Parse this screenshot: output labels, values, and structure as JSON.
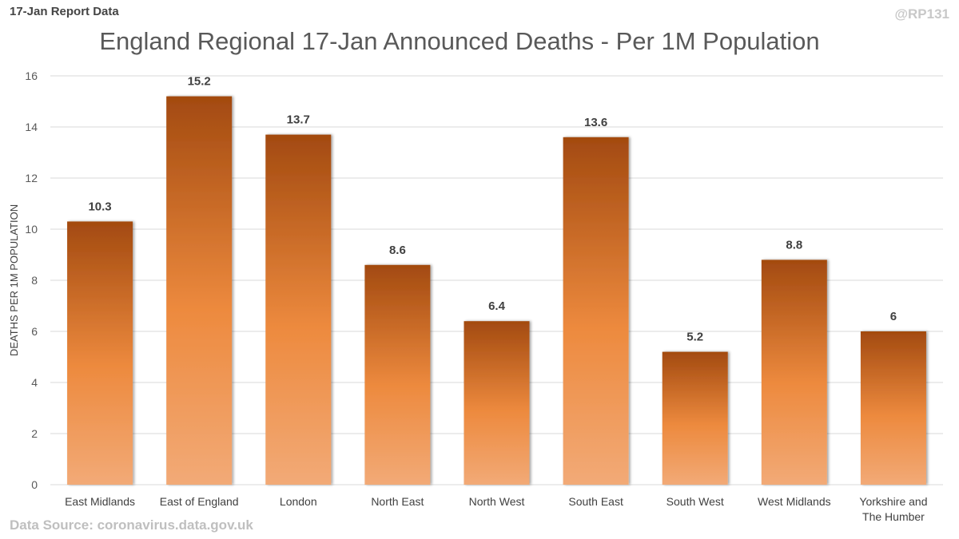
{
  "header": {
    "report_label": "17-Jan Report Data",
    "handle": "@RP131"
  },
  "footer": {
    "source": "Data Source: coronavirus.data.gov.uk"
  },
  "colors": {
    "bar_top": "#a34a10",
    "bar_mid": "#ed8a3e",
    "bar_bottom": "#f2aa77",
    "gridline": "#d9d9d9"
  },
  "chart_data": {
    "type": "bar",
    "title": "England Regional 17-Jan Announced Deaths - Per 1M Population",
    "xlabel": "",
    "ylabel": "DEATHS PER 1M POPULATION",
    "ylim": [
      0,
      16
    ],
    "yticks": [
      0,
      2,
      4,
      6,
      8,
      10,
      12,
      14,
      16
    ],
    "grid": true,
    "legend": "none",
    "categories": [
      "East Midlands",
      "East of England",
      "London",
      "North East",
      "North West",
      "South East",
      "South West",
      "West Midlands",
      "Yorkshire and The Humber"
    ],
    "values": [
      10.3,
      15.2,
      13.7,
      8.6,
      6.4,
      13.6,
      5.2,
      8.8,
      6
    ],
    "data_labels": [
      "10.3",
      "15.2",
      "13.7",
      "8.6",
      "6.4",
      "13.6",
      "5.2",
      "8.8",
      "6"
    ]
  }
}
